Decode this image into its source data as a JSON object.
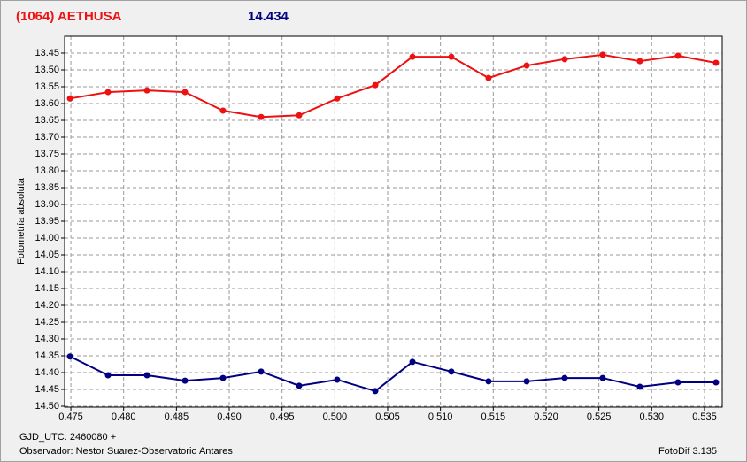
{
  "chart_data": {
    "type": "line",
    "title": "(1064) AETHUSA",
    "subtitle": "14.434",
    "ylabel": "Fotometría absoluta",
    "xlabel": "GJD_UTC: 2460080 +",
    "annotations": [
      "Observador: Nestor Suarez-Observatorio Antares",
      "FotoDif 3.135"
    ],
    "x": [
      0.47492,
      0.47852,
      0.48221,
      0.48581,
      0.48941,
      0.49302,
      0.49662,
      0.50022,
      0.50383,
      0.50735,
      0.51103,
      0.51455,
      0.51816,
      0.52176,
      0.52536,
      0.52888,
      0.53249,
      0.53609
    ],
    "series": [
      {
        "color": "#ee1111",
        "values": [
          13.585,
          13.566,
          13.561,
          13.566,
          13.621,
          13.64,
          13.635,
          13.585,
          13.545,
          13.461,
          13.461,
          13.524,
          13.487,
          13.468,
          13.455,
          13.474,
          13.458,
          13.479
        ]
      },
      {
        "color": "#000080",
        "values": [
          14.352,
          14.408,
          14.408,
          14.424,
          14.416,
          14.397,
          14.439,
          14.421,
          14.455,
          14.368,
          14.397,
          14.426,
          14.426,
          14.416,
          14.416,
          14.442,
          14.429,
          14.429
        ]
      }
    ],
    "xlim": [
      0.47441,
      0.53668
    ],
    "xticks": [
      0.475,
      {
        "value": 0.48,
        "label": "0.480"
      },
      0.485,
      {
        "value": 0.49,
        "label": "0.490"
      },
      0.495,
      {
        "value": 0.5,
        "label": "0.500"
      },
      0.505,
      {
        "value": 0.51,
        "label": "0.510"
      },
      0.515,
      {
        "value": 0.52,
        "label": "0.520"
      },
      0.525,
      {
        "value": 0.53,
        "label": "0.530"
      },
      0.535
    ],
    "ylim": [
      14.5,
      13.4
    ],
    "yticks": [
      13.45,
      {
        "value": 13.5,
        "label": "13.50"
      },
      13.55,
      {
        "value": 13.6,
        "label": "13.60"
      },
      13.65,
      {
        "value": 13.7,
        "label": "13.70"
      },
      13.75,
      {
        "value": 13.8,
        "label": "13.80"
      },
      13.85,
      {
        "value": 13.9,
        "label": "13.90"
      },
      13.95,
      {
        "value": 14.0,
        "label": "14.00"
      },
      14.05,
      {
        "value": 14.1,
        "label": "14.10"
      },
      14.15,
      {
        "value": 14.2,
        "label": "14.20"
      },
      14.25,
      {
        "value": 14.3,
        "label": "14.30"
      },
      14.35,
      {
        "value": 14.4,
        "label": "14.40"
      },
      14.45,
      {
        "value": 14.5,
        "label": "14.50"
      }
    ],
    "grid": true
  }
}
